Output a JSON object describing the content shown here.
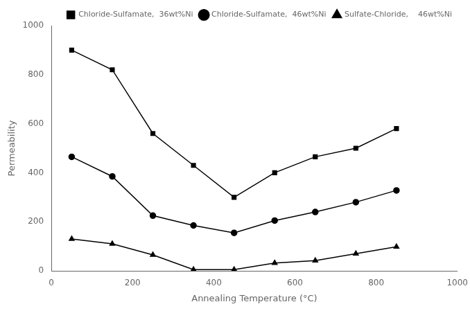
{
  "chart_data": {
    "type": "line",
    "xlabel": "Annealing Temperature (°C)",
    "ylabel": "Permeability",
    "x": [
      50,
      150,
      250,
      350,
      450,
      550,
      650,
      750,
      850
    ],
    "series": [
      {
        "name": "Chloride-Sulfamate,  36wt%Ni",
        "color": "black",
        "marker": "square",
        "values": [
          900,
          820,
          560,
          430,
          300,
          400,
          465,
          500,
          580
        ]
      },
      {
        "name": "Chloride-Sulfamate,  46wt%Ni",
        "color": "black",
        "marker": "circle",
        "values": [
          465,
          385,
          225,
          185,
          155,
          205,
          240,
          280,
          328
        ]
      },
      {
        "name": "Sulfate-Chloride,    46wt%Ni",
        "color": "black",
        "marker": "triangle",
        "values": [
          130,
          110,
          65,
          5,
          5,
          32,
          42,
          70,
          98
        ]
      }
    ],
    "xlim": [
      0,
      1000
    ],
    "ylim": [
      0,
      1000
    ],
    "xticks": [
      0,
      200,
      400,
      600,
      800,
      1000
    ],
    "yticks": [
      0,
      200,
      400,
      600,
      800,
      1000
    ],
    "grid": false,
    "legend": "upper right"
  }
}
